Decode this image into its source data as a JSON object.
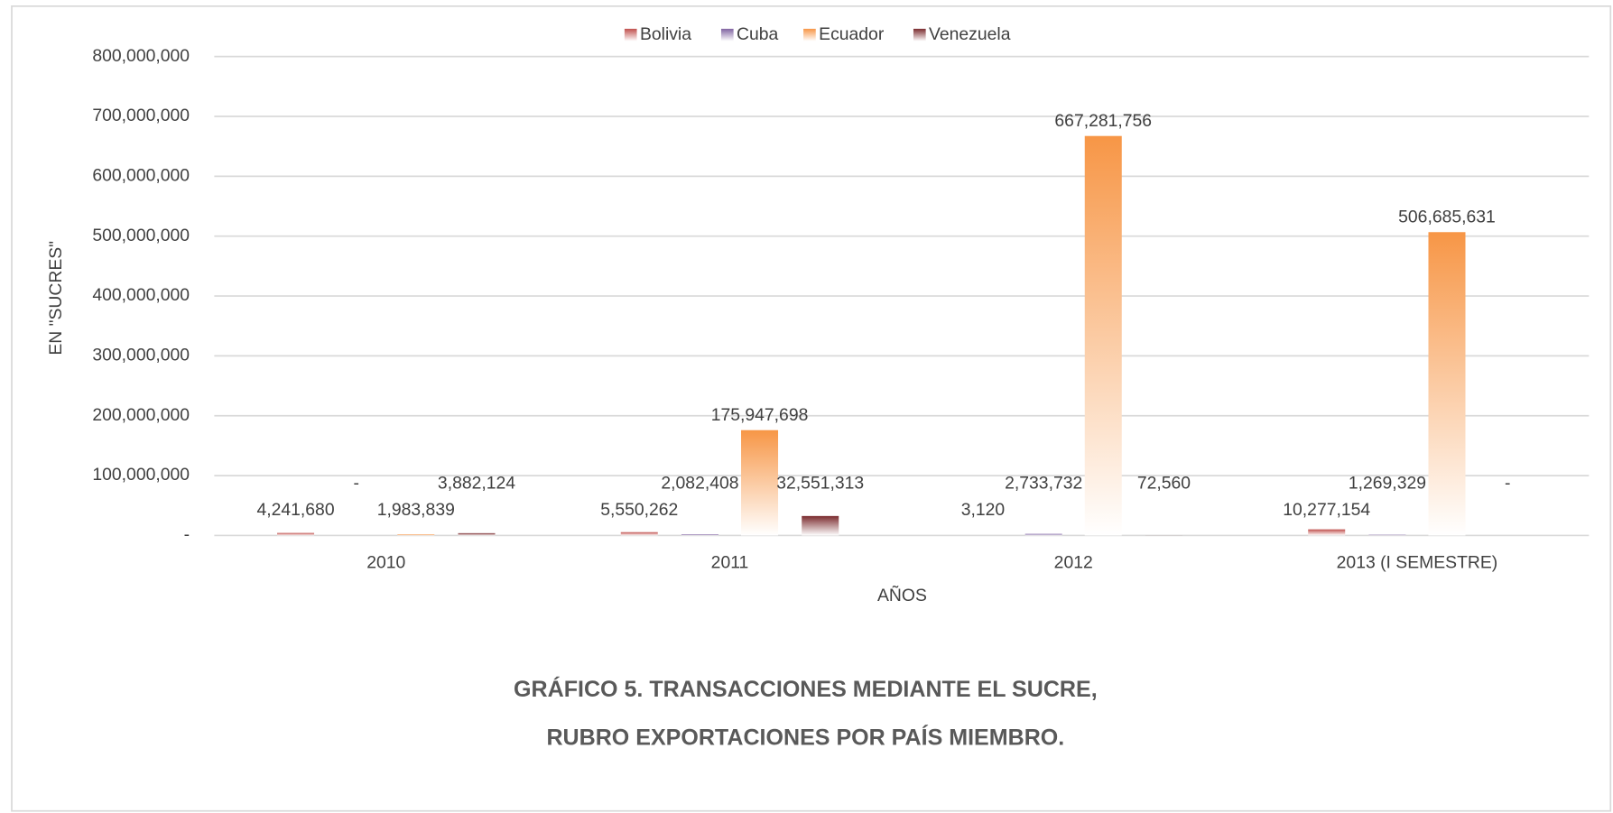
{
  "chart_data": {
    "type": "bar",
    "caption": [
      "GRÁFICO 5. TRANSACCIONES MEDIANTE EL SUCRE,",
      "RUBRO EXPORTACIONES POR PAÍS MIEMBRO."
    ],
    "y_label": "EN \"SUCRES\"",
    "x_label": "AÑOS",
    "categories": [
      "2010",
      "2011",
      "2012",
      "2013 (I SEMESTRE)"
    ],
    "series": [
      {
        "name": "Bolivia",
        "color": "#c0504d",
        "values": [
          4241680,
          5550262,
          3120,
          10277154
        ],
        "value_labels": [
          "4,241,680",
          "5,550,262",
          "3,120",
          "10,277,154"
        ]
      },
      {
        "name": "Cuba",
        "color": "#8064a2",
        "values": [
          0,
          2082408,
          2733732,
          1269329
        ],
        "value_labels": [
          "-",
          "2,082,408",
          "2,733,732",
          "1,269,329"
        ]
      },
      {
        "name": "Ecuador",
        "color": "#f79646",
        "values": [
          1983839,
          175947698,
          667281756,
          506685631
        ],
        "value_labels": [
          "1,983,839",
          "175,947,698",
          "667,281,756",
          "506,685,631"
        ]
      },
      {
        "name": "Venezuela",
        "color": "#7b2c2f",
        "values": [
          3882124,
          32551313,
          72560,
          0
        ],
        "value_labels": [
          "3,882,124",
          "32,551,313",
          "72,560",
          "-"
        ]
      }
    ],
    "ylim": [
      0,
      800000000
    ],
    "yticks": [
      {
        "value": 0,
        "label": "-"
      },
      {
        "value": 100000000,
        "label": "100,000,000"
      },
      {
        "value": 200000000,
        "label": "200,000,000"
      },
      {
        "value": 300000000,
        "label": "300,000,000"
      },
      {
        "value": 400000000,
        "label": "400,000,000"
      },
      {
        "value": 500000000,
        "label": "500,000,000"
      },
      {
        "value": 600000000,
        "label": "600,000,000"
      },
      {
        "value": 700000000,
        "label": "700,000,000"
      },
      {
        "value": 800000000,
        "label": "800,000,000"
      }
    ],
    "grid": true,
    "legend": "top"
  }
}
